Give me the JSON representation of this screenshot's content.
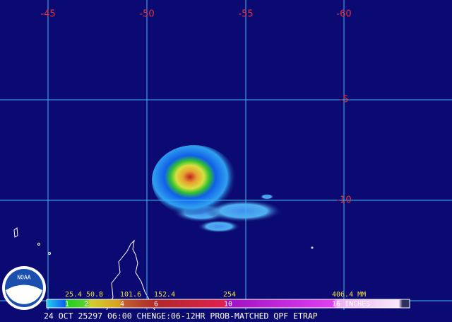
{
  "map": {
    "longitude_labels": [
      "-45",
      "-50",
      "-55",
      "-60"
    ],
    "latitude_labels": [
      "-5",
      "-10"
    ],
    "legend": {
      "mm_labels": [
        "25.4",
        "50.8",
        "101.6",
        "152.4",
        "254",
        "406.4 MM"
      ],
      "inch_labels": [
        "1",
        "2",
        "4",
        "6",
        "10",
        "16 INCHES"
      ]
    },
    "caption": "24 OCT 25297 06:00 CHENGE:06-12HR PROB-MATCHED QPF ETRAP",
    "logo": "NOAA"
  }
}
